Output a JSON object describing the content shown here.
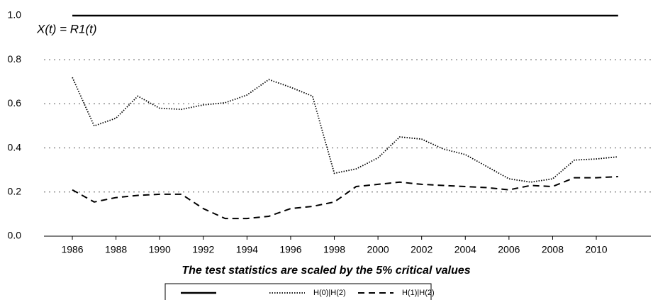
{
  "chart_data": {
    "type": "line",
    "annotation": "X(t) = R1(t)",
    "xlabel": "The test statistics are scaled by the 5% critical values",
    "x": [
      1986,
      1987,
      1988,
      1989,
      1990,
      1991,
      1992,
      1993,
      1994,
      1995,
      1996,
      1997,
      1998,
      1999,
      2000,
      2001,
      2002,
      2003,
      2004,
      2005,
      2006,
      2007,
      2008,
      2009,
      2010,
      2011
    ],
    "series": [
      {
        "color": "#000000",
        "linestyle": "solid",
        "values": [
          1,
          1,
          1,
          1,
          1,
          1,
          1,
          1,
          1,
          1,
          1,
          1,
          1,
          1,
          1,
          1,
          1,
          1,
          1,
          1,
          1,
          1,
          1,
          1,
          1,
          1
        ]
      },
      {
        "name": "H(0)|H(2)",
        "color": "#000000",
        "linestyle": "dotted",
        "values": [
          0.72,
          0.5,
          0.535,
          0.635,
          0.58,
          0.575,
          0.595,
          0.605,
          0.64,
          0.71,
          0.675,
          0.635,
          0.285,
          0.305,
          0.355,
          0.45,
          0.44,
          0.395,
          0.37,
          0.315,
          0.26,
          0.245,
          0.26,
          0.345,
          0.35,
          0.36
        ]
      },
      {
        "name": "H(1)|H(2)",
        "color": "#000000",
        "linestyle": "dashed",
        "values": [
          0.21,
          0.155,
          0.175,
          0.185,
          0.19,
          0.19,
          0.125,
          0.08,
          0.08,
          0.09,
          0.125,
          0.135,
          0.155,
          0.225,
          0.235,
          0.245,
          0.235,
          0.23,
          0.225,
          0.22,
          0.21,
          0.23,
          0.225,
          0.265,
          0.265,
          0.27
        ]
      }
    ],
    "xlim": [
      1984.7,
      2012.5
    ],
    "xticks": [
      1986,
      1988,
      1990,
      1992,
      1994,
      1996,
      1998,
      2000,
      2002,
      2004,
      2006,
      2008,
      2010
    ],
    "ylim": [
      0,
      1
    ],
    "yticks": [
      {
        "value": 0,
        "label": "0.0"
      },
      0.2,
      0.4,
      0.6,
      0.8,
      {
        "value": 1,
        "label": "1.0"
      }
    ],
    "grid": true,
    "legend": "bottom"
  }
}
